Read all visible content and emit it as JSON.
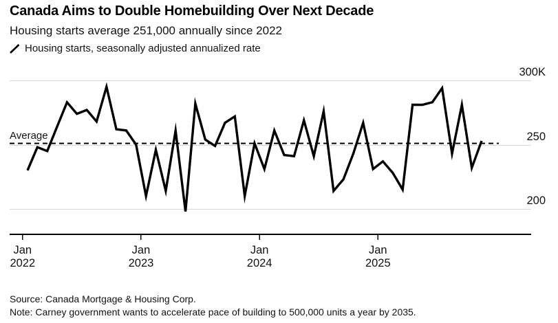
{
  "header": {
    "title": "Canada Aims to Double Homebuilding Over Next Decade",
    "subtitle": "Housing starts average 251,000 annually since 2022"
  },
  "legend": {
    "series_label": "Housing starts, seasonally adjusted annualized rate"
  },
  "footer": {
    "source": "Source: Canada Mortgage & Housing Corp.",
    "note": "Note: Carney government wants to accelerate pace of building to 500,000 units a year by 2035."
  },
  "chart_data": {
    "type": "line",
    "title": "Canada Aims to Double Homebuilding Over Next Decade",
    "series_name": "Housing starts, seasonally adjusted annualized rate",
    "unit": "thousands of units, annualized",
    "x": [
      "Jan 2022",
      "Feb 2022",
      "Mar 2022",
      "Apr 2022",
      "May 2022",
      "Jun 2022",
      "Jul 2022",
      "Aug 2022",
      "Sep 2022",
      "Oct 2022",
      "Nov 2022",
      "Dec 2022",
      "Jan 2023",
      "Feb 2023",
      "Mar 2023",
      "Apr 2023",
      "May 2023",
      "Jun 2023",
      "Jul 2023",
      "Aug 2023",
      "Sep 2023",
      "Oct 2023",
      "Nov 2023",
      "Dec 2023",
      "Jan 2024",
      "Feb 2024",
      "Mar 2024",
      "Apr 2024",
      "May 2024",
      "Jun 2024",
      "Jul 2024",
      "Aug 2024",
      "Sep 2024",
      "Oct 2024",
      "Nov 2024",
      "Dec 2024",
      "Jan 2025",
      "Feb 2025",
      "Mar 2025",
      "Apr 2025",
      "May 2025",
      "Jun 2025",
      "Jul 2025",
      "Aug 2025",
      "Sep 2025",
      "Oct 2025",
      "Nov 2025"
    ],
    "values": [
      230,
      248,
      245,
      264,
      283,
      274,
      277,
      268,
      295,
      262,
      261,
      250,
      210,
      246,
      214,
      261,
      198,
      282,
      254,
      249,
      267,
      272,
      210,
      251,
      231,
      261,
      242,
      241,
      269,
      241,
      276,
      214,
      223,
      243,
      267,
      231,
      237,
      228,
      215,
      281,
      281,
      283,
      294,
      243,
      281,
      232,
      253
    ],
    "average_value": 251,
    "average_label": "Average",
    "y_ticks": [
      {
        "value": 300,
        "label": "300K"
      },
      {
        "value": 250,
        "label": "250"
      },
      {
        "value": 200,
        "label": "200"
      }
    ],
    "x_ticks": [
      {
        "index": 0,
        "line1": "Jan",
        "line2": "2022"
      },
      {
        "index": 12,
        "line1": "Jan",
        "line2": "2023"
      },
      {
        "index": 24,
        "line1": "Jan",
        "line2": "2024"
      },
      {
        "index": 36,
        "line1": "Jan",
        "line2": "2025"
      }
    ],
    "ylim": [
      188,
      312
    ],
    "grid": true,
    "legend_position": "top-left",
    "colors": {
      "line": "#000000",
      "grid": "#d9d9d9",
      "average_line": "#000000",
      "axis": "#000000"
    }
  }
}
